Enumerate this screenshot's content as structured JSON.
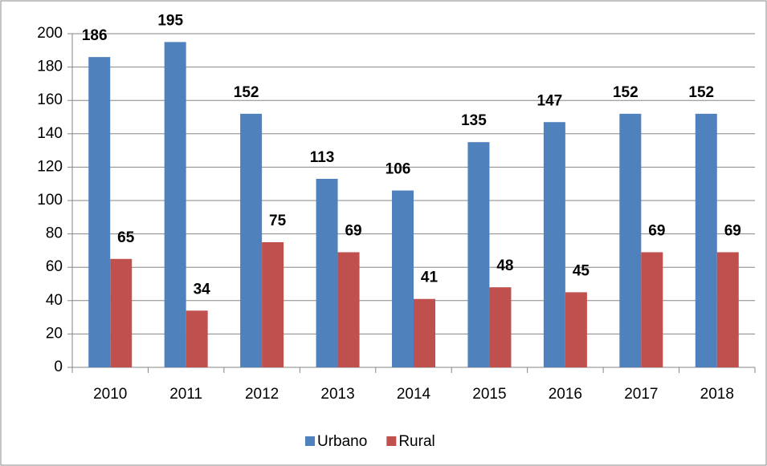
{
  "chart_data": {
    "type": "bar",
    "categories": [
      "2010",
      "2011",
      "2012",
      "2013",
      "2014",
      "2015",
      "2016",
      "2017",
      "2018"
    ],
    "series": [
      {
        "name": "Urbano",
        "color": "#4f81bd",
        "values": [
          186,
          195,
          152,
          113,
          106,
          135,
          147,
          152,
          152
        ]
      },
      {
        "name": "Rural",
        "color": "#c0504d",
        "values": [
          65,
          34,
          75,
          69,
          41,
          48,
          45,
          69,
          69
        ]
      }
    ],
    "ylim": [
      0,
      200
    ],
    "yticks": [
      0,
      20,
      40,
      60,
      80,
      100,
      120,
      140,
      160,
      180,
      200
    ],
    "grid": true,
    "legend": "bottom"
  }
}
